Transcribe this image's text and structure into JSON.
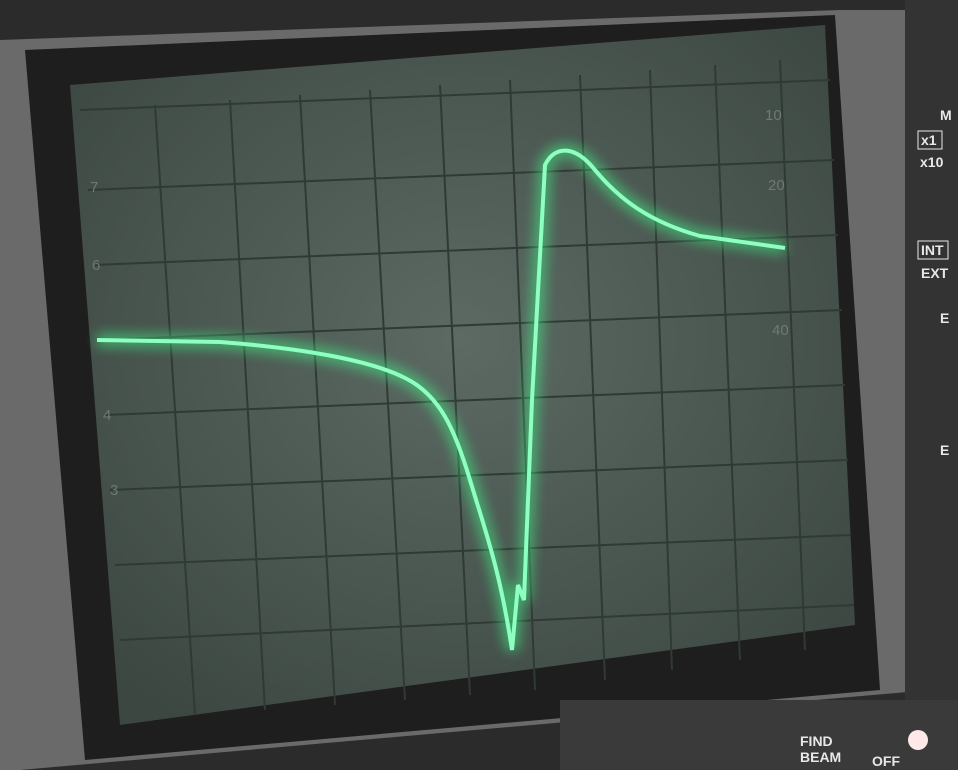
{
  "screen": {
    "left_scale": [
      "7",
      "6",
      "4",
      "3"
    ],
    "right_scale": [
      "10",
      "20",
      "40"
    ]
  },
  "panel": {
    "top_letter": "M",
    "x1": "x1",
    "x10": "x10",
    "int": "INT",
    "ext": "EXT",
    "e1": "E",
    "e2": "E",
    "find": "FIND",
    "beam": "BEAM",
    "off": "OFF"
  }
}
